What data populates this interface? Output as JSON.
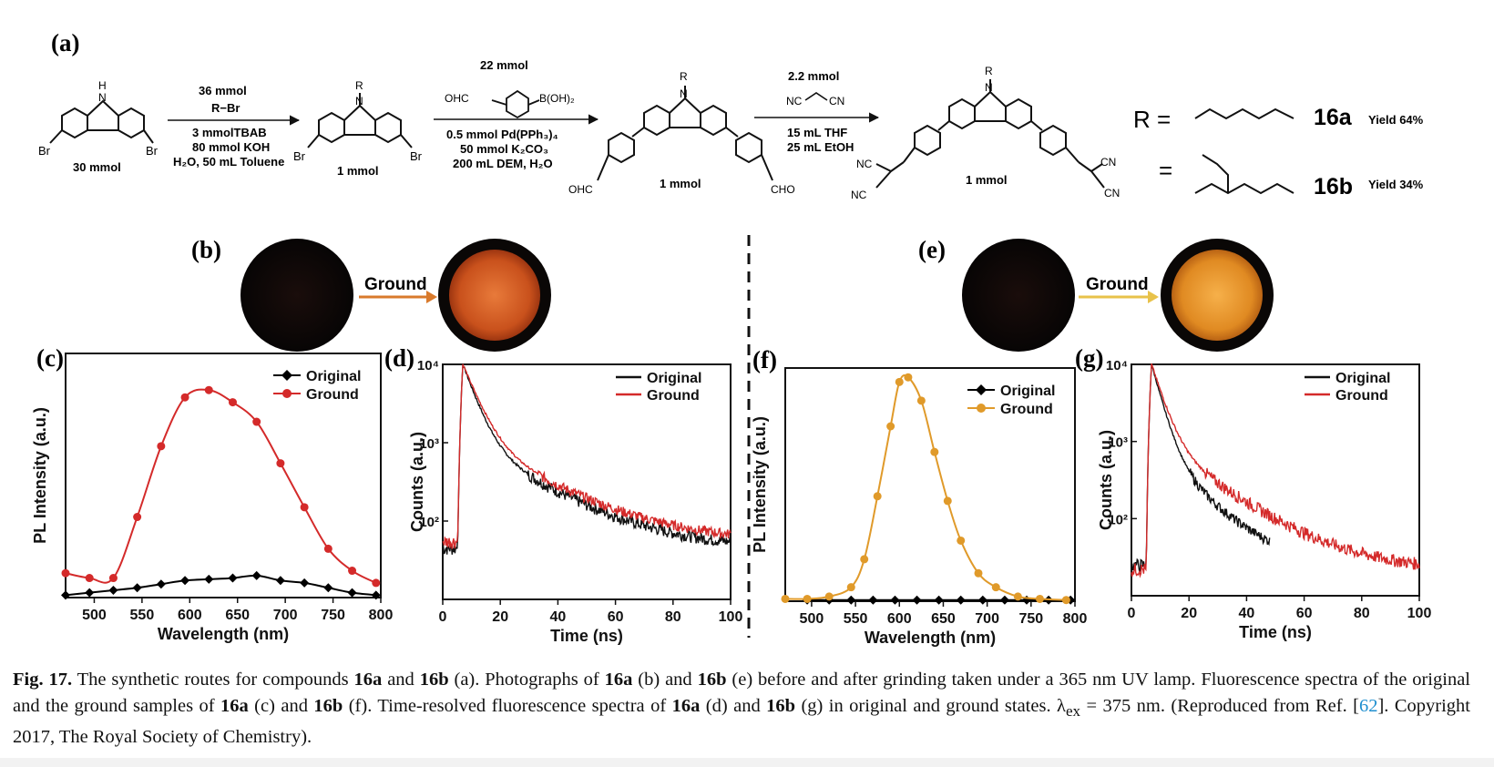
{
  "panel_labels": {
    "a": "(a)",
    "b": "(b)",
    "c": "(c)",
    "d": "(d)",
    "e": "(e)",
    "f": "(f)",
    "g": "(g)"
  },
  "scheme": {
    "sm_nh_h": "H",
    "sm_nh_n": "N",
    "sm_br_left": "Br",
    "sm_br_right": "Br",
    "sm_amount": "30 mmol",
    "step1_top1": "36 mmol",
    "step1_top2": "R−Br",
    "step1_bot1": "3 mmolTBAB",
    "step1_bot2": "80 mmol KOH",
    "step1_bot3": "H₂O, 50 mL Toluene",
    "int1_r": "R",
    "int1_n": "N",
    "int1_br_left": "Br",
    "int1_br_right": "Br",
    "int1_amount": "1 mmol",
    "step2_top1": "22 mmol",
    "step2_ohc": "OHC",
    "step2_boh": "B(OH)₂",
    "step2_bot1": "0.5 mmol Pd(PPh₃)₄",
    "step2_bot2": "50 mmol K₂CO₃",
    "step2_bot3": "200 mL DEM, H₂O",
    "int2_r": "R",
    "int2_n": "N",
    "int2_ohc": "OHC",
    "int2_cho": "CHO",
    "int2_amount": "1 mmol",
    "step3_top1": "2.2 mmol",
    "step3_nc": "NC",
    "step3_cn": "CN",
    "step3_bot1": "15 mL THF",
    "step3_bot2": "25 mL EtOH",
    "prod_r": "R",
    "prod_n": "N",
    "prod_nc1": "NC",
    "prod_nc2": "NC",
    "prod_cn1": "CN",
    "prod_cn2": "CN",
    "prod_amount": "1 mmol",
    "r_equals": "R =",
    "equals2": "=",
    "cmpd_a": "16a",
    "cmpd_b": "16b",
    "yield_a": "Yield 64%",
    "yield_b": "Yield 34%"
  },
  "photos": {
    "ground_label_b": "Ground",
    "ground_label_e": "Ground",
    "arrow_color_b": "#d97a2c",
    "arrow_color_e": "#e8c24a",
    "glow_b": "#e0662a",
    "glow_e": "#f0a030"
  },
  "chart_data": [
    {
      "panel": "c",
      "type": "line",
      "xlabel": "Wavelength (nm)",
      "ylabel": "PL Intensity (a.u.)",
      "xlim": [
        470,
        800
      ],
      "ylim": [
        0,
        100
      ],
      "xticks": [
        "500",
        "550",
        "600",
        "650",
        "700",
        "750",
        "800"
      ],
      "legend": [
        "Original",
        "Ground"
      ],
      "series": [
        {
          "name": "Original",
          "color": "#000000",
          "marker": "diamond",
          "x": [
            470,
            495,
            520,
            545,
            570,
            595,
            620,
            645,
            670,
            695,
            720,
            745,
            770,
            795
          ],
          "y": [
            1,
            2,
            3,
            4,
            5.5,
            7,
            7.5,
            8,
            9,
            7,
            6,
            4,
            2,
            1
          ]
        },
        {
          "name": "Ground",
          "color": "#d42a2a",
          "marker": "circle",
          "x": [
            470,
            495,
            520,
            545,
            570,
            595,
            620,
            645,
            670,
            695,
            720,
            745,
            770,
            795
          ],
          "y": [
            10,
            8,
            8,
            33,
            62,
            82,
            85,
            80,
            72,
            55,
            37,
            20,
            11,
            6
          ]
        }
      ]
    },
    {
      "panel": "d",
      "type": "line",
      "xlabel": "Time (ns)",
      "ylabel": "Counts (a.u.)",
      "xlim": [
        0,
        100
      ],
      "ylim_log10": [
        1,
        4
      ],
      "xticks": [
        "0",
        "20",
        "40",
        "60",
        "80",
        "100"
      ],
      "yticks": [
        "10⁴",
        "10³",
        "10²"
      ],
      "legend": [
        "Original",
        "Ground"
      ],
      "series": [
        {
          "name": "Original",
          "color": "#111111",
          "peak_ns": 7,
          "tau_fast": 4,
          "tau_slow": 20,
          "frac_slow": 0.1,
          "floor": 45,
          "noise": 0.35,
          "end_ns": 100
        },
        {
          "name": "Ground",
          "color": "#d42a2a",
          "peak_ns": 7,
          "tau_fast": 4.5,
          "tau_slow": 21,
          "frac_slow": 0.11,
          "floor": 55,
          "noise": 0.3,
          "end_ns": 100
        }
      ]
    },
    {
      "panel": "f",
      "type": "line",
      "xlabel": "Wavelength (nm)",
      "ylabel": "PL Intensity (a.u.)",
      "xlim": [
        470,
        800
      ],
      "ylim": [
        0,
        100
      ],
      "xticks": [
        "500",
        "550",
        "600",
        "650",
        "700",
        "750",
        "800"
      ],
      "legend": [
        "Original",
        "Ground"
      ],
      "series": [
        {
          "name": "Original",
          "color": "#000000",
          "marker": "diamond",
          "x": [
            495,
            520,
            545,
            570,
            595,
            620,
            645,
            670,
            695,
            720,
            745,
            770,
            795
          ],
          "y": [
            0.5,
            0.5,
            0.5,
            0.5,
            0.5,
            0.5,
            0.5,
            0.5,
            0.5,
            0.5,
            0.5,
            0.5,
            0.5
          ]
        },
        {
          "name": "Ground",
          "color": "#e09a2a",
          "marker": "circle",
          "x": [
            470,
            495,
            520,
            545,
            560,
            575,
            590,
            600,
            610,
            625,
            640,
            655,
            670,
            690,
            710,
            735,
            760,
            790
          ],
          "y": [
            1,
            1,
            2,
            6,
            18,
            45,
            75,
            94,
            96,
            86,
            64,
            43,
            26,
            12,
            6,
            2,
            1,
            0.5
          ]
        }
      ]
    },
    {
      "panel": "g",
      "type": "line",
      "xlabel": "Time (ns)",
      "ylabel": "Counts (a.u.)",
      "xlim": [
        0,
        100
      ],
      "ylim_log10": [
        1,
        4
      ],
      "xticks": [
        "0",
        "20",
        "40",
        "60",
        "80",
        "100"
      ],
      "yticks": [
        "10⁴",
        "10³",
        "10²"
      ],
      "legend": [
        "Original",
        "Ground"
      ],
      "series": [
        {
          "name": "Original",
          "color": "#111111",
          "peak_ns": 7,
          "tau_fast": 3,
          "tau_slow": 12,
          "frac_slow": 0.08,
          "floor": 25,
          "noise": 0.3,
          "end_ns": 48
        },
        {
          "name": "Ground",
          "color": "#d42a2a",
          "peak_ns": 7,
          "tau_fast": 3.5,
          "tau_slow": 17,
          "frac_slow": 0.1,
          "floor": 22,
          "noise": 0.38,
          "end_ns": 100
        }
      ]
    }
  ],
  "caption": {
    "fig": "Fig. 17.",
    "t1": " The synthetic routes for compounds ",
    "c1": "16a",
    "t2": " and ",
    "c2": "16b",
    "t3": " (a). Photographs of ",
    "c3": "16a",
    "t4": " (b) and ",
    "c4": "16b",
    "t5": " (e) before and after grinding taken under a 365 nm UV lamp. Fluorescence spectra of the original and the ground samples of ",
    "c5": "16a",
    "t6": " (c) and ",
    "c6": "16b",
    "t7": " (f). Time-resolved fluorescence spectra of ",
    "c7": "16a",
    "t8": " (d) and ",
    "c8": "16b",
    "t9": " (g) in original and ground states. λ",
    "sub": "ex",
    "t10": " = 375 nm. (Reproduced from Ref. [",
    "ref": "62",
    "t11": "]. Copyright 2017, The Royal Society of Chemistry)."
  }
}
